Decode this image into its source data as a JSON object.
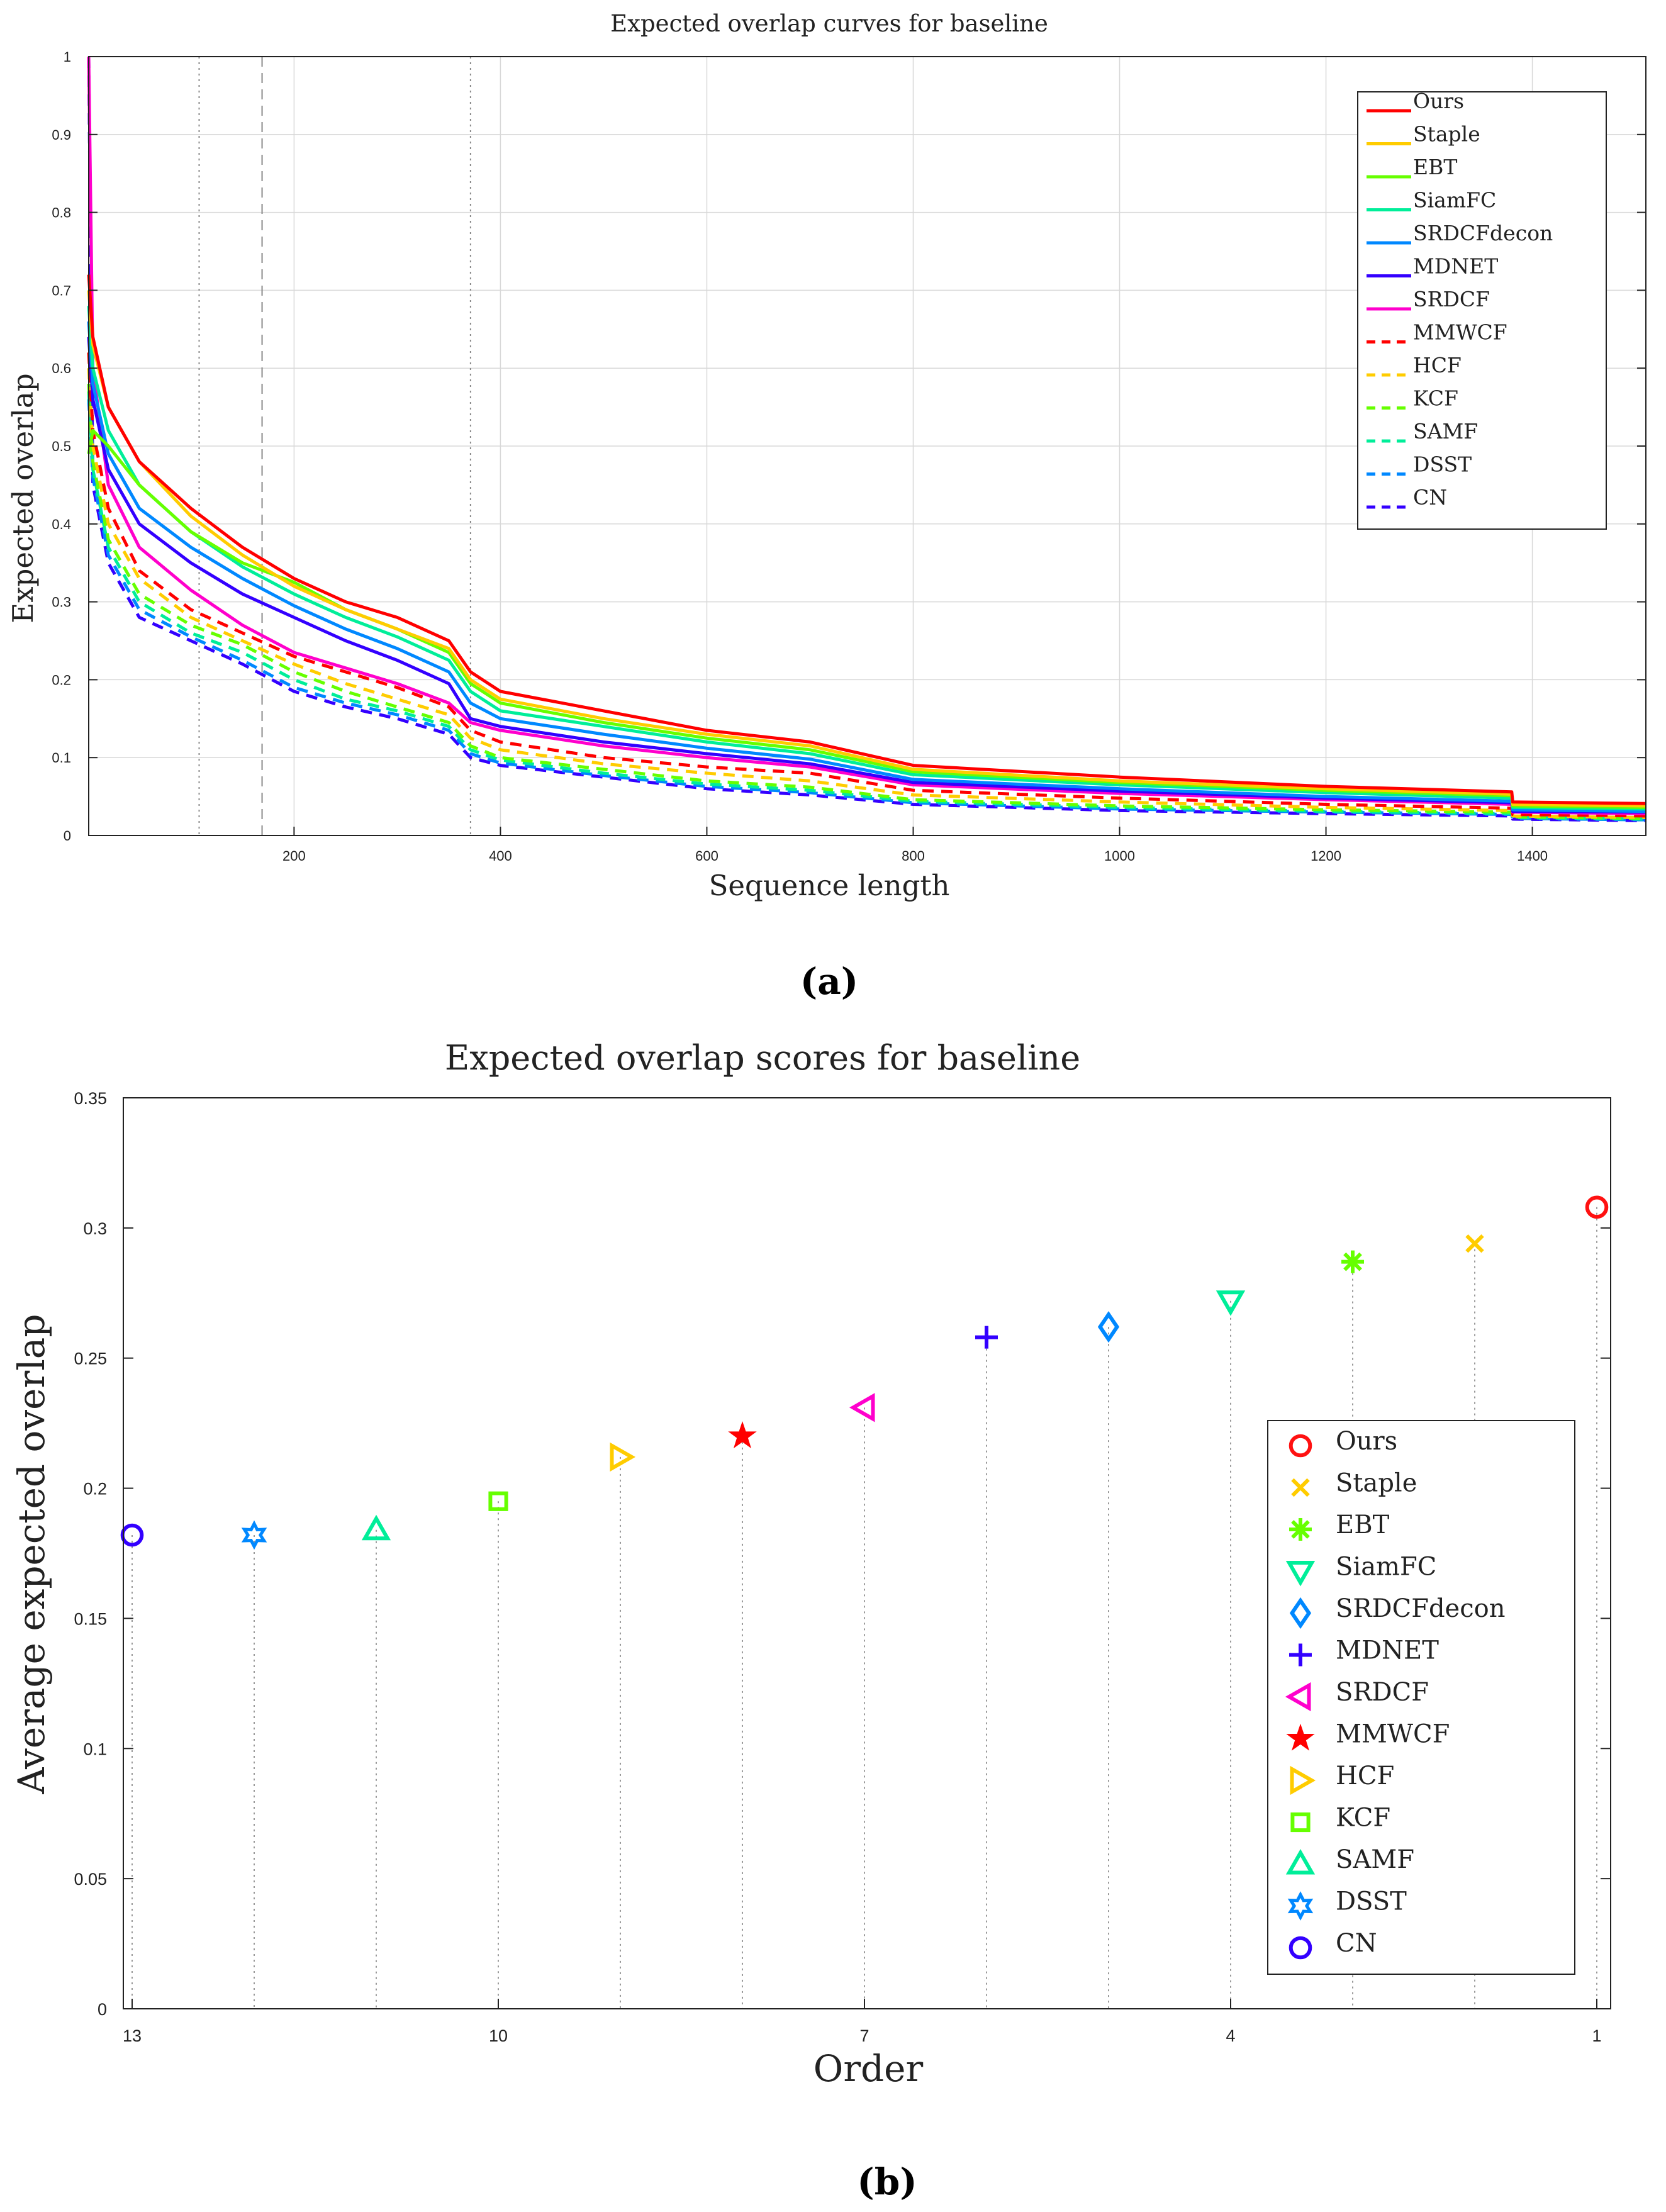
{
  "chart_data": [
    {
      "id": "a",
      "type": "line",
      "title": "Expected overlap curves for baseline",
      "xlabel": "Sequence length",
      "ylabel": "Expected overlap",
      "xlim": [
        1,
        1510
      ],
      "ylim": [
        0,
        1
      ],
      "xticks": [
        200,
        400,
        600,
        800,
        1000,
        1200,
        1400
      ],
      "yticks": [
        0,
        0.1,
        0.2,
        0.3,
        0.4,
        0.5,
        0.6,
        0.7,
        0.8,
        0.9,
        1
      ],
      "grid": true,
      "legend_position": "top-right",
      "vlines": [
        {
          "x": 108,
          "style": "dotted"
        },
        {
          "x": 169,
          "style": "dashed"
        },
        {
          "x": 371,
          "style": "dotted"
        }
      ],
      "caption": "(a)",
      "series": [
        {
          "name": "Ours",
          "color": "#ff0000",
          "style": "solid",
          "x": [
            1,
            5,
            20,
            50,
            100,
            150,
            200,
            250,
            300,
            350,
            371,
            400,
            500,
            600,
            700,
            800,
            1000,
            1200,
            1380,
            1381,
            1510
          ],
          "y": [
            0.72,
            0.64,
            0.55,
            0.48,
            0.42,
            0.37,
            0.33,
            0.3,
            0.28,
            0.25,
            0.21,
            0.185,
            0.16,
            0.135,
            0.12,
            0.09,
            0.075,
            0.063,
            0.056,
            0.043,
            0.041
          ]
        },
        {
          "name": "Staple",
          "color": "#ffcc00",
          "style": "solid",
          "x": [
            1,
            5,
            20,
            50,
            100,
            150,
            200,
            250,
            300,
            350,
            371,
            400,
            500,
            600,
            700,
            800,
            1000,
            1200,
            1380,
            1381,
            1510
          ],
          "y": [
            0.7,
            0.63,
            0.55,
            0.48,
            0.41,
            0.36,
            0.32,
            0.29,
            0.265,
            0.24,
            0.2,
            0.175,
            0.15,
            0.13,
            0.115,
            0.085,
            0.07,
            0.06,
            0.053,
            0.04,
            0.038
          ]
        },
        {
          "name": "EBT",
          "color": "#66ff00",
          "style": "solid",
          "x": [
            1,
            5,
            20,
            50,
            100,
            150,
            200,
            250,
            300,
            350,
            371,
            400,
            500,
            600,
            700,
            800,
            1000,
            1200,
            1380,
            1381,
            1510
          ],
          "y": [
            0.49,
            0.52,
            0.5,
            0.45,
            0.39,
            0.35,
            0.325,
            0.29,
            0.265,
            0.235,
            0.195,
            0.17,
            0.145,
            0.125,
            0.11,
            0.082,
            0.068,
            0.058,
            0.051,
            0.038,
            0.036
          ]
        },
        {
          "name": "SiamFC",
          "color": "#00ee99",
          "style": "solid",
          "x": [
            1,
            5,
            20,
            50,
            100,
            150,
            200,
            250,
            300,
            350,
            371,
            400,
            500,
            600,
            700,
            800,
            1000,
            1200,
            1380,
            1381,
            1510
          ],
          "y": [
            0.68,
            0.6,
            0.52,
            0.45,
            0.39,
            0.345,
            0.31,
            0.28,
            0.255,
            0.225,
            0.185,
            0.16,
            0.14,
            0.12,
            0.105,
            0.078,
            0.065,
            0.055,
            0.048,
            0.036,
            0.034
          ]
        },
        {
          "name": "SRDCFdecon",
          "color": "#0088ff",
          "style": "solid",
          "x": [
            1,
            5,
            20,
            50,
            100,
            150,
            200,
            250,
            300,
            350,
            371,
            400,
            500,
            600,
            700,
            800,
            1000,
            1200,
            1380,
            1381,
            1510
          ],
          "y": [
            0.66,
            0.58,
            0.49,
            0.42,
            0.37,
            0.33,
            0.295,
            0.265,
            0.24,
            0.21,
            0.17,
            0.15,
            0.13,
            0.112,
            0.098,
            0.072,
            0.06,
            0.05,
            0.044,
            0.033,
            0.031
          ]
        },
        {
          "name": "MDNET",
          "color": "#3300ff",
          "style": "solid",
          "x": [
            1,
            5,
            20,
            50,
            100,
            150,
            200,
            250,
            300,
            350,
            371,
            400,
            500,
            600,
            700,
            800,
            1000,
            1200,
            1380,
            1381,
            1510
          ],
          "y": [
            0.64,
            0.56,
            0.47,
            0.4,
            0.35,
            0.31,
            0.28,
            0.25,
            0.225,
            0.195,
            0.15,
            0.14,
            0.12,
            0.105,
            0.092,
            0.068,
            0.057,
            0.048,
            0.042,
            0.031,
            0.03
          ]
        },
        {
          "name": "SRDCF",
          "color": "#ff00cc",
          "style": "solid",
          "x": [
            1,
            5,
            20,
            50,
            100,
            150,
            200,
            250,
            300,
            350,
            371,
            400,
            500,
            600,
            700,
            800,
            1000,
            1200,
            1380,
            1381,
            1510
          ],
          "y": [
            1.0,
            0.6,
            0.45,
            0.37,
            0.315,
            0.27,
            0.235,
            0.215,
            0.195,
            0.17,
            0.145,
            0.135,
            0.115,
            0.1,
            0.088,
            0.065,
            0.054,
            0.046,
            0.04,
            0.03,
            0.028
          ]
        },
        {
          "name": "MMWCF",
          "color": "#ff0000",
          "style": "dashed",
          "x": [
            1,
            5,
            20,
            50,
            100,
            150,
            200,
            250,
            300,
            350,
            371,
            400,
            500,
            600,
            700,
            800,
            1000,
            1200,
            1380,
            1381,
            1510
          ],
          "y": [
            0.62,
            0.52,
            0.42,
            0.34,
            0.29,
            0.26,
            0.23,
            0.21,
            0.19,
            0.165,
            0.135,
            0.12,
            0.1,
            0.088,
            0.08,
            0.058,
            0.048,
            0.04,
            0.035,
            0.027,
            0.025
          ]
        },
        {
          "name": "HCF",
          "color": "#ffcc00",
          "style": "dashed",
          "x": [
            1,
            5,
            20,
            50,
            100,
            150,
            200,
            250,
            300,
            350,
            371,
            400,
            500,
            600,
            700,
            800,
            1000,
            1200,
            1380,
            1381,
            1510
          ],
          "y": [
            0.6,
            0.5,
            0.4,
            0.33,
            0.28,
            0.25,
            0.22,
            0.195,
            0.175,
            0.155,
            0.125,
            0.11,
            0.092,
            0.08,
            0.07,
            0.052,
            0.043,
            0.036,
            0.032,
            0.025,
            0.023
          ]
        },
        {
          "name": "KCF",
          "color": "#66ff00",
          "style": "dashed",
          "x": [
            1,
            5,
            20,
            50,
            100,
            150,
            200,
            250,
            300,
            350,
            371,
            400,
            500,
            600,
            700,
            800,
            1000,
            1200,
            1380,
            1381,
            1510
          ],
          "y": [
            0.58,
            0.48,
            0.38,
            0.31,
            0.27,
            0.245,
            0.21,
            0.185,
            0.165,
            0.145,
            0.115,
            0.1,
            0.085,
            0.07,
            0.062,
            0.046,
            0.038,
            0.033,
            0.03,
            0.024,
            0.022
          ]
        },
        {
          "name": "SAMF",
          "color": "#00ee99",
          "style": "dashed",
          "x": [
            1,
            5,
            20,
            50,
            100,
            150,
            200,
            250,
            300,
            350,
            371,
            400,
            500,
            600,
            700,
            800,
            1000,
            1200,
            1380,
            1381,
            1510
          ],
          "y": [
            0.57,
            0.47,
            0.37,
            0.3,
            0.26,
            0.235,
            0.2,
            0.175,
            0.16,
            0.14,
            0.11,
            0.097,
            0.08,
            0.066,
            0.058,
            0.044,
            0.036,
            0.031,
            0.028,
            0.023,
            0.021
          ]
        },
        {
          "name": "DSST",
          "color": "#0088ff",
          "style": "dashed",
          "x": [
            1,
            5,
            20,
            50,
            100,
            150,
            200,
            250,
            300,
            350,
            371,
            400,
            500,
            600,
            700,
            800,
            1000,
            1200,
            1380,
            1381,
            1510
          ],
          "y": [
            0.56,
            0.46,
            0.36,
            0.29,
            0.255,
            0.225,
            0.19,
            0.17,
            0.155,
            0.135,
            0.105,
            0.093,
            0.077,
            0.063,
            0.055,
            0.042,
            0.034,
            0.03,
            0.027,
            0.022,
            0.02
          ]
        },
        {
          "name": "CN",
          "color": "#3300ff",
          "style": "dashed",
          "x": [
            1,
            5,
            20,
            50,
            100,
            150,
            200,
            250,
            300,
            350,
            371,
            400,
            500,
            600,
            700,
            800,
            1000,
            1200,
            1380,
            1381,
            1510
          ],
          "y": [
            1.0,
            0.45,
            0.35,
            0.28,
            0.25,
            0.22,
            0.185,
            0.165,
            0.15,
            0.13,
            0.1,
            0.09,
            0.075,
            0.06,
            0.052,
            0.04,
            0.032,
            0.028,
            0.025,
            0.021,
            0.019
          ]
        }
      ]
    },
    {
      "id": "b",
      "type": "scatter",
      "title": "Expected overlap scores for baseline",
      "xlabel": "Order",
      "ylabel": "Average expected overlap",
      "xlim": [
        13,
        1
      ],
      "ylim": [
        0,
        0.35
      ],
      "xticks": [
        13,
        10,
        7,
        4,
        1
      ],
      "yticks": [
        0,
        0.05,
        0.1,
        0.15,
        0.2,
        0.25,
        0.3,
        0.35
      ],
      "legend_position": "right",
      "caption": "(b)",
      "points": [
        {
          "name": "Ours",
          "order": 1,
          "value": 0.308,
          "color": "#ff1111",
          "marker": "circle"
        },
        {
          "name": "Staple",
          "order": 2,
          "value": 0.294,
          "color": "#ffcc00",
          "marker": "x"
        },
        {
          "name": "EBT",
          "order": 3,
          "value": 0.287,
          "color": "#66ff00",
          "marker": "asterisk"
        },
        {
          "name": "SiamFC",
          "order": 4,
          "value": 0.272,
          "color": "#00ee99",
          "marker": "triangle-down"
        },
        {
          "name": "SRDCFdecon",
          "order": 5,
          "value": 0.262,
          "color": "#0088ff",
          "marker": "diamond"
        },
        {
          "name": "MDNET",
          "order": 6,
          "value": 0.258,
          "color": "#3300ff",
          "marker": "plus"
        },
        {
          "name": "SRDCF",
          "order": 7,
          "value": 0.231,
          "color": "#ff00cc",
          "marker": "triangle-left"
        },
        {
          "name": "MMWCF",
          "order": 8,
          "value": 0.22,
          "color": "#ff0000",
          "marker": "pentagram"
        },
        {
          "name": "HCF",
          "order": 9,
          "value": 0.212,
          "color": "#ffcc00",
          "marker": "triangle-right"
        },
        {
          "name": "KCF",
          "order": 10,
          "value": 0.195,
          "color": "#66ff00",
          "marker": "square"
        },
        {
          "name": "SAMF",
          "order": 11,
          "value": 0.184,
          "color": "#00ee99",
          "marker": "triangle-up"
        },
        {
          "name": "DSST",
          "order": 12,
          "value": 0.182,
          "color": "#0088ff",
          "marker": "hexagram"
        },
        {
          "name": "CN",
          "order": 13,
          "value": 0.182,
          "color": "#3300ff",
          "marker": "circle"
        }
      ]
    }
  ]
}
